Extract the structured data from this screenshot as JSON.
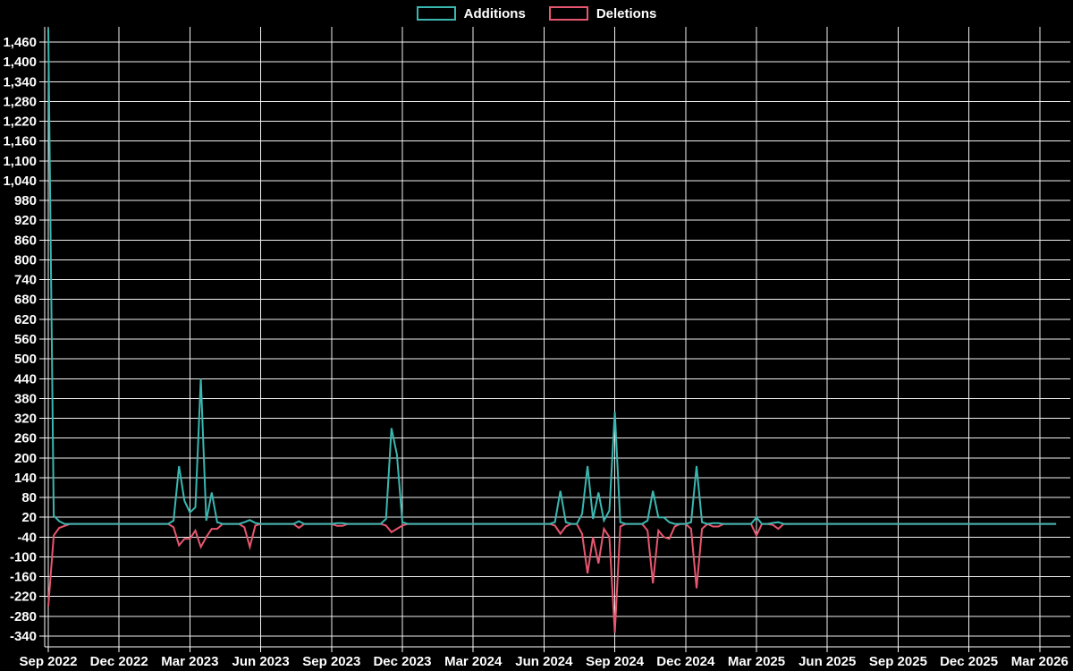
{
  "page": {
    "background": "#000000",
    "text_color": "#ffffff",
    "grid_color": "#f0f0f0"
  },
  "chart_data": {
    "type": "line",
    "title": "",
    "legend_position": "top-center",
    "grid": true,
    "background": "#000000",
    "series": [
      {
        "name": "Additions",
        "color": "#3ab7b0",
        "sign": "positive"
      },
      {
        "name": "Deletions",
        "color": "#e8566f",
        "sign": "negative"
      }
    ],
    "x_axis": {
      "unit": "week",
      "total_weeks": 186,
      "weeks_per_quarter": 13,
      "tick_labels": [
        "Sep 2022",
        "Dec 2022",
        "Mar 2023",
        "Jun 2023",
        "Sep 2023",
        "Dec 2023",
        "Mar 2024",
        "Jun 2024",
        "Sep 2024",
        "Dec 2024",
        "Mar 2025",
        "Jun 2025",
        "Sep 2025",
        "Dec 2025",
        "Mar 2026"
      ]
    },
    "y_axis": {
      "min": -340,
      "max": 1460,
      "step": 60,
      "number_format": "comma-thousands",
      "tick_values": [
        1460,
        1400,
        1340,
        1280,
        1220,
        1160,
        1100,
        1040,
        980,
        920,
        860,
        800,
        740,
        680,
        620,
        560,
        500,
        440,
        380,
        320,
        260,
        200,
        140,
        80,
        20,
        -40,
        -100,
        -160,
        -220,
        -280,
        -340
      ]
    },
    "weekly_nonzero_points": {
      "format": [
        "week_index_from_Sep_2022",
        "additions",
        "deletions"
      ],
      "note": "all unlisted weeks are 0 for both series",
      "rows": [
        [
          0,
          1500,
          -250
        ],
        [
          1,
          25,
          -35
        ],
        [
          2,
          8,
          -12
        ],
        [
          3,
          0,
          -6
        ],
        [
          23,
          10,
          -10
        ],
        [
          24,
          175,
          -65
        ],
        [
          25,
          70,
          -45
        ],
        [
          26,
          35,
          -45
        ],
        [
          27,
          50,
          -20
        ],
        [
          28,
          440,
          -70
        ],
        [
          29,
          10,
          -40
        ],
        [
          30,
          95,
          -15
        ],
        [
          31,
          5,
          -15
        ],
        [
          36,
          5,
          -10
        ],
        [
          37,
          12,
          -70
        ],
        [
          38,
          3,
          -5
        ],
        [
          46,
          8,
          -12
        ],
        [
          53,
          2,
          -6
        ],
        [
          54,
          2,
          -6
        ],
        [
          62,
          15,
          -5
        ],
        [
          63,
          290,
          -25
        ],
        [
          64,
          210,
          -15
        ],
        [
          65,
          5,
          -5
        ],
        [
          93,
          5,
          -5
        ],
        [
          94,
          100,
          -30
        ],
        [
          95,
          5,
          -8
        ],
        [
          98,
          30,
          -30
        ],
        [
          99,
          175,
          -150
        ],
        [
          100,
          15,
          -40
        ],
        [
          101,
          95,
          -120
        ],
        [
          102,
          10,
          -15
        ],
        [
          103,
          40,
          -40
        ],
        [
          104,
          340,
          -330
        ],
        [
          105,
          5,
          -8
        ],
        [
          110,
          10,
          -20
        ],
        [
          111,
          100,
          -180
        ],
        [
          112,
          20,
          -20
        ],
        [
          113,
          20,
          -40
        ],
        [
          114,
          5,
          -45
        ],
        [
          115,
          0,
          -8
        ],
        [
          118,
          5,
          -15
        ],
        [
          119,
          175,
          -195
        ],
        [
          120,
          5,
          -15
        ],
        [
          122,
          2,
          -8
        ],
        [
          123,
          2,
          -8
        ],
        [
          130,
          20,
          -35
        ],
        [
          133,
          3,
          -3
        ],
        [
          134,
          5,
          -15
        ]
      ]
    }
  }
}
